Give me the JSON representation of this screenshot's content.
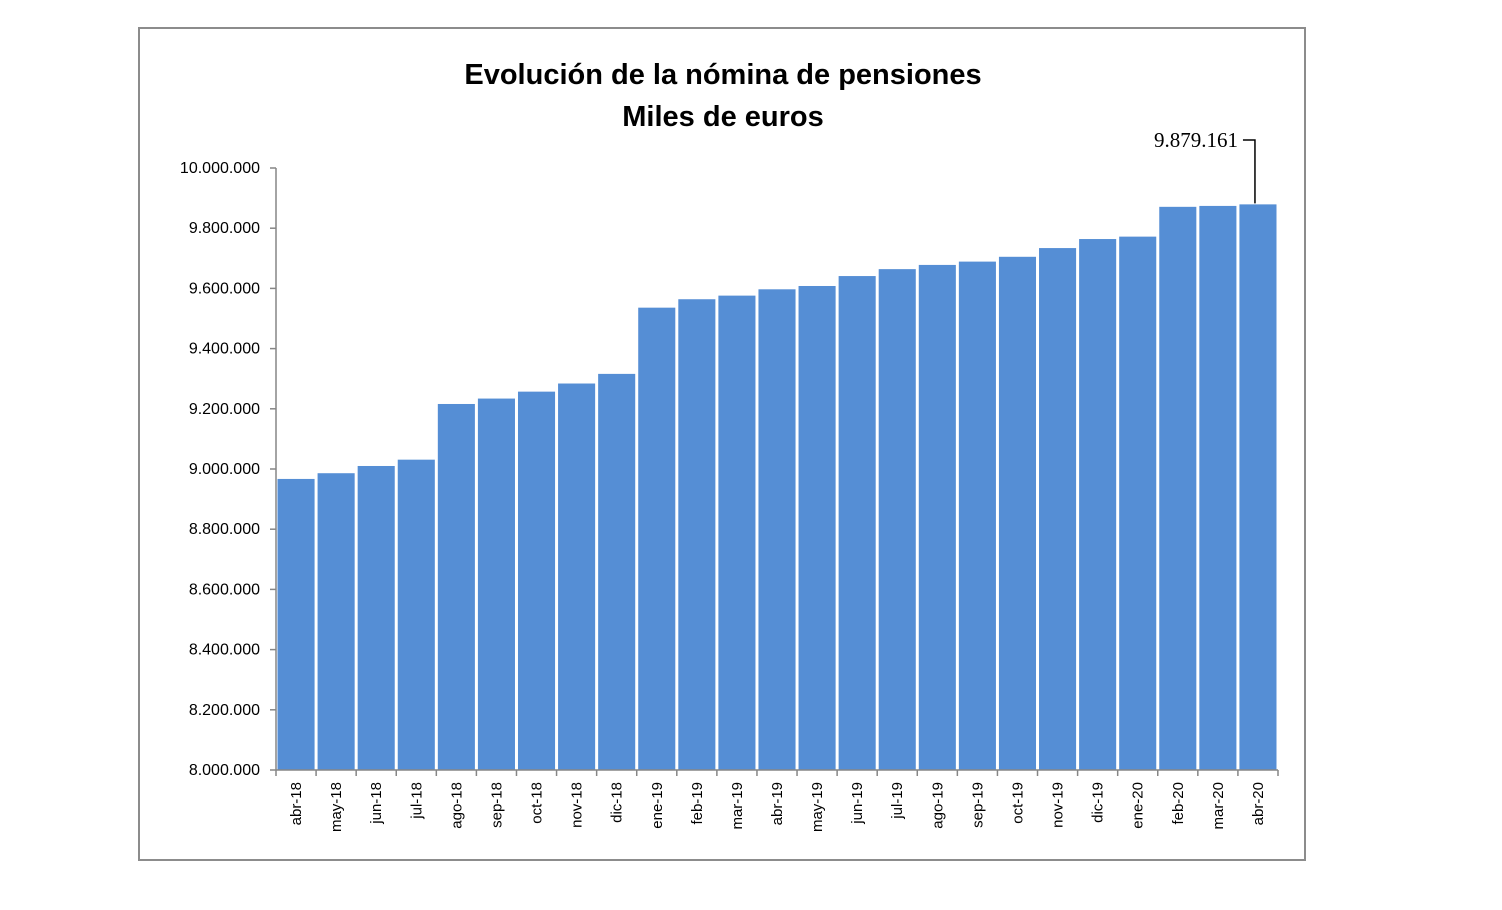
{
  "chart_data": {
    "type": "bar",
    "title": "Evolución de la nómina de pensiones",
    "subtitle": "Miles de euros",
    "xlabel": "",
    "ylabel": "",
    "ylim": [
      8000000,
      10000000
    ],
    "grid": false,
    "legend": "none",
    "bar_color": "#558ED5",
    "y_ticks": [
      {
        "value": 8000000,
        "label": "8.000.000"
      },
      {
        "value": 8200000,
        "label": "8.200.000"
      },
      {
        "value": 8400000,
        "label": "8.400.000"
      },
      {
        "value": 8600000,
        "label": "8.600.000"
      },
      {
        "value": 8800000,
        "label": "8.800.000"
      },
      {
        "value": 9000000,
        "label": "9.000.000"
      },
      {
        "value": 9200000,
        "label": "9.200.000"
      },
      {
        "value": 9400000,
        "label": "9.400.000"
      },
      {
        "value": 9600000,
        "label": "9.600.000"
      },
      {
        "value": 9800000,
        "label": "9.800.000"
      },
      {
        "value": 10000000,
        "label": "10.000.000"
      }
    ],
    "categories": [
      "abr-18",
      "may-18",
      "jun-18",
      "jul-18",
      "ago-18",
      "sep-18",
      "oct-18",
      "nov-18",
      "dic-18",
      "ene-19",
      "feb-19",
      "mar-19",
      "abr-19",
      "may-19",
      "jun-19",
      "jul-19",
      "ago-19",
      "sep-19",
      "oct-19",
      "nov-19",
      "dic-19",
      "ene-20",
      "feb-20",
      "mar-20",
      "abr-20"
    ],
    "values": [
      8967000,
      8986000,
      9010000,
      9031000,
      9216000,
      9234000,
      9257000,
      9284000,
      9316000,
      9536000,
      9564000,
      9576000,
      9597000,
      9608000,
      9641000,
      9664000,
      9678000,
      9689000,
      9705000,
      9734000,
      9764000,
      9772000,
      9871000,
      9874000,
      9879161
    ],
    "annotation": {
      "label": "9.879.161",
      "category": "abr-20",
      "value": 9879161
    }
  }
}
